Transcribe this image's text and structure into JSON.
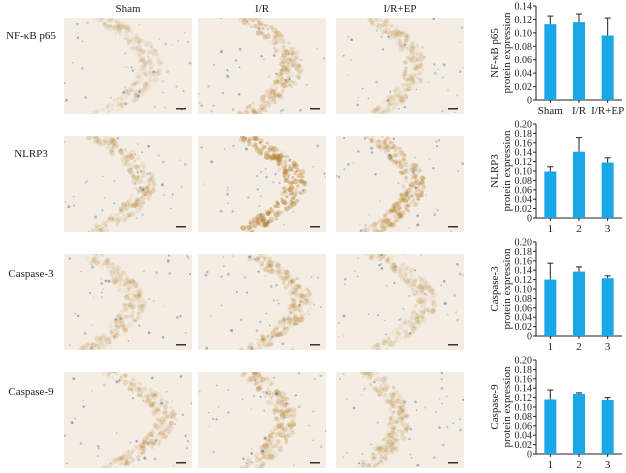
{
  "columns": [
    "Sham",
    "I/R",
    "I/R+EP"
  ],
  "rows": [
    {
      "label": "NF-κB p65"
    },
    {
      "label": "NLRP3"
    },
    {
      "label": "Caspase-3"
    },
    {
      "label": "Caspase-9"
    }
  ],
  "colors": {
    "bar": "#1aa7e8",
    "axis": "#222222",
    "stain_light": "#f3ede4",
    "stain_dark": "#b8802f",
    "nuclei": "#5a6ea8"
  },
  "chart_data": [
    {
      "type": "bar",
      "categories": [
        "Sham",
        "I/R",
        "I/R+EP"
      ],
      "values": [
        0.113,
        0.116,
        0.096
      ],
      "errors": [
        0.012,
        0.012,
        0.026
      ],
      "ylabel_line1": "NF-κB p65",
      "ylabel_line2": "protein expression",
      "ylim": [
        0,
        0.14
      ],
      "yticks": [
        0,
        0.02,
        0.04,
        0.06,
        0.08,
        0.1,
        0.12,
        0.14
      ],
      "ytick_labels": [
        "0",
        "0.02",
        "0.04",
        "0.06",
        "0.08",
        "0.10",
        "0.12",
        "0.14"
      ]
    },
    {
      "type": "bar",
      "categories": [
        "1",
        "2",
        "3"
      ],
      "values": [
        0.099,
        0.141,
        0.118
      ],
      "errors": [
        0.01,
        0.03,
        0.01
      ],
      "ylabel_line1": "NLRP3",
      "ylabel_line2": "protein expression",
      "ylim": [
        0,
        0.2
      ],
      "yticks": [
        0,
        0.02,
        0.04,
        0.06,
        0.08,
        0.1,
        0.12,
        0.14,
        0.16,
        0.18,
        0.2
      ],
      "ytick_labels": [
        "0",
        "0.02",
        "0.04",
        "0.06",
        "0.08",
        "0.10",
        "0.12",
        "0.14",
        "0.16",
        "0.18",
        "0.20"
      ]
    },
    {
      "type": "bar",
      "categories": [
        "1",
        "2",
        "3"
      ],
      "values": [
        0.12,
        0.137,
        0.123
      ],
      "errors": [
        0.035,
        0.01,
        0.005
      ],
      "ylabel_line1": "Caspase-3",
      "ylabel_line2": "protein expression",
      "ylim": [
        0,
        0.2
      ],
      "yticks": [
        0,
        0.02,
        0.04,
        0.06,
        0.08,
        0.1,
        0.12,
        0.14,
        0.16,
        0.18,
        0.2
      ],
      "ytick_labels": [
        "0",
        "0.02",
        "0.04",
        "0.06",
        "0.08",
        "0.10",
        "0.12",
        "0.14",
        "0.16",
        "0.18",
        "0.20"
      ]
    },
    {
      "type": "bar",
      "categories": [
        "1",
        "2",
        "3"
      ],
      "values": [
        0.116,
        0.128,
        0.115
      ],
      "errors": [
        0.02,
        0.002,
        0.005
      ],
      "ylabel_line1": "Caspase-9",
      "ylabel_line2": "protein expression",
      "ylim": [
        0,
        0.2
      ],
      "yticks": [
        0,
        0.02,
        0.04,
        0.06,
        0.08,
        0.1,
        0.12,
        0.14,
        0.16,
        0.18,
        0.2
      ],
      "ytick_labels": [
        "0",
        "0.02",
        "0.04",
        "0.06",
        "0.08",
        "0.10",
        "0.12",
        "0.14",
        "0.16",
        "0.18",
        "0.20"
      ]
    }
  ]
}
